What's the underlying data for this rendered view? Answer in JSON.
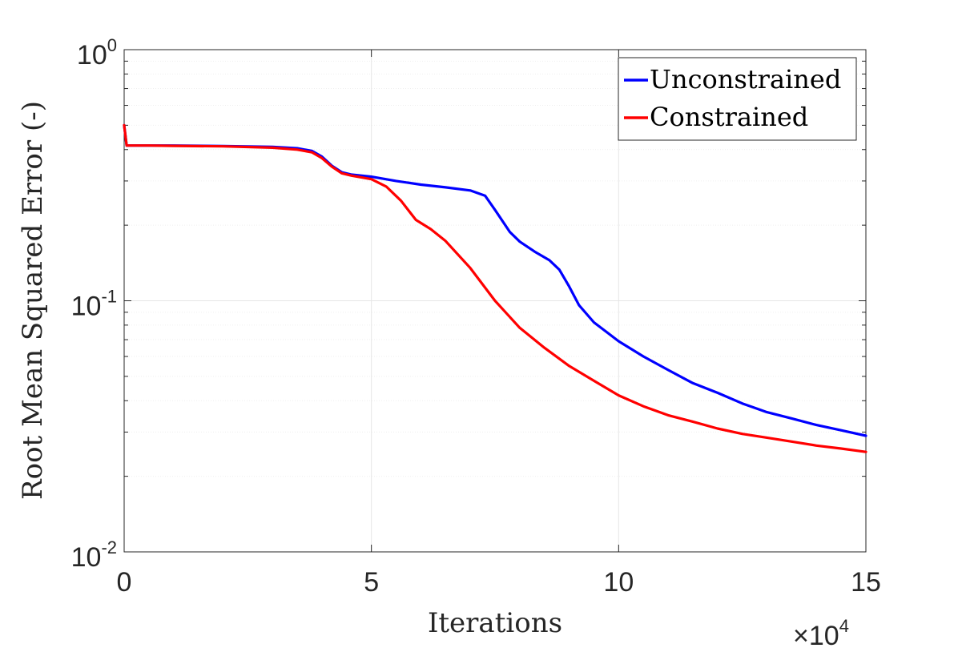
{
  "chart_data": {
    "type": "line",
    "title": "",
    "xlabel": "Iterations",
    "ylabel": "Root Mean Squared Error (-)",
    "x_multiplier": {
      "prefix": "×10",
      "exponent": "4"
    },
    "xlim": [
      0,
      15
    ],
    "ylim": [
      0.01,
      1
    ],
    "yscale": "log",
    "grid": true,
    "legend": "top-right",
    "x_ticks": [
      "0",
      "5",
      "10",
      "15"
    ],
    "y_ticks": [
      {
        "base": "10",
        "exponent": "0",
        "value": 1
      },
      {
        "base": "10",
        "exponent": "-1",
        "value": 0.1
      },
      {
        "base": "10",
        "exponent": "-2",
        "value": 0.01
      }
    ],
    "series": [
      {
        "name": "Unconstrained",
        "color": "#0000ff",
        "x": [
          0,
          0.05,
          0.5,
          1,
          2,
          3,
          3.5,
          3.8,
          4.0,
          4.2,
          4.4,
          4.6,
          5,
          5.5,
          6,
          6.5,
          7,
          7.3,
          7.5,
          7.8,
          8,
          8.3,
          8.6,
          8.8,
          9,
          9.2,
          9.5,
          10,
          10.5,
          11,
          11.5,
          12,
          12.5,
          13,
          13.5,
          14,
          14.5,
          15
        ],
        "y": [
          0.5,
          0.415,
          0.415,
          0.415,
          0.413,
          0.41,
          0.405,
          0.395,
          0.375,
          0.345,
          0.325,
          0.318,
          0.312,
          0.3,
          0.29,
          0.283,
          0.275,
          0.262,
          0.23,
          0.188,
          0.172,
          0.157,
          0.145,
          0.133,
          0.114,
          0.096,
          0.082,
          0.069,
          0.06,
          0.053,
          0.047,
          0.043,
          0.039,
          0.036,
          0.034,
          0.032,
          0.0305,
          0.029
        ]
      },
      {
        "name": "Constrained",
        "color": "#ff0000",
        "x": [
          0,
          0.05,
          0.5,
          1,
          2,
          3,
          3.5,
          3.8,
          4.0,
          4.2,
          4.4,
          4.6,
          5,
          5.3,
          5.6,
          5.9,
          6.2,
          6.5,
          7,
          7.5,
          8,
          8.5,
          9,
          9.5,
          10,
          10.5,
          11,
          11.5,
          12,
          12.5,
          13,
          13.5,
          14,
          14.5,
          15
        ],
        "y": [
          0.5,
          0.415,
          0.415,
          0.414,
          0.412,
          0.407,
          0.4,
          0.39,
          0.37,
          0.342,
          0.322,
          0.315,
          0.305,
          0.285,
          0.25,
          0.21,
          0.193,
          0.173,
          0.135,
          0.1,
          0.078,
          0.065,
          0.055,
          0.048,
          0.042,
          0.038,
          0.035,
          0.033,
          0.031,
          0.0295,
          0.0285,
          0.0275,
          0.0265,
          0.0258,
          0.025
        ]
      }
    ]
  }
}
